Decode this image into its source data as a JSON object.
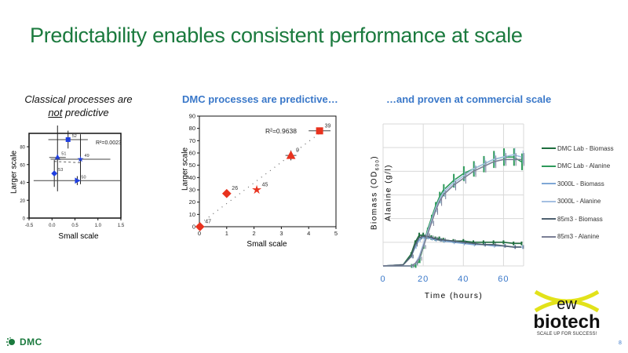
{
  "title": "Predictability enables consistent performance at scale",
  "subtitles": {
    "classical_line1": "Classical processes are",
    "classical_not": "not",
    "classical_rest": " predictive",
    "dmc": "DMC processes are predictive…",
    "commercial": "…and proven at commercial scale"
  },
  "footer": {
    "logo_text": "DMC",
    "page_number": "8",
    "partner_logo": "ewx biotech SCALE UP FOR SUCCESS!"
  },
  "chart_data": [
    {
      "id": "classical",
      "type": "scatter",
      "xlabel": "Small scale",
      "ylabel": "Larger scale",
      "xlim": [
        -0.5,
        1.5
      ],
      "ylim": [
        0,
        95
      ],
      "xticks": [
        -0.5,
        0.0,
        0.5,
        1.0,
        1.5
      ],
      "xtick_labels": [
        "-0.5",
        "0.0",
        "0.5",
        "1.0",
        "1.5"
      ],
      "yticks": [
        0,
        20,
        40,
        60,
        80
      ],
      "annotation": "R²=0.0023",
      "trendline": "dashed",
      "points": [
        {
          "label": "52",
          "x": 0.35,
          "y": 88,
          "marker": "square",
          "xerr": 0.43,
          "yerr": 10
        },
        {
          "label": "51",
          "x": 0.12,
          "y": 68,
          "marker": "triangle",
          "xerr": 0.18,
          "yerr": 38
        },
        {
          "label": "49",
          "x": 0.62,
          "y": 66,
          "marker": "star",
          "xerr": 0.65,
          "yerr": 28
        },
        {
          "label": "53",
          "x": 0.05,
          "y": 50,
          "marker": "diamond",
          "xerr": 0.05,
          "yerr": 15
        },
        {
          "label": "50",
          "x": 0.55,
          "y": 42,
          "marker": "triangle-right",
          "xerr": 0.95,
          "yerr": 5
        }
      ],
      "color": "#1f3fe0"
    },
    {
      "id": "dmc",
      "type": "scatter",
      "xlabel": "Small scale",
      "ylabel": "Larger scale",
      "xlim": [
        0,
        5
      ],
      "ylim": [
        0,
        90
      ],
      "xticks": [
        0,
        1,
        2,
        3,
        4,
        5
      ],
      "xtick_labels": [
        "0",
        "1",
        "2",
        "3",
        "4",
        "5"
      ],
      "yticks": [
        0,
        10,
        20,
        30,
        40,
        50,
        60,
        70,
        80,
        90
      ],
      "annotation": "R²=0.9638",
      "trendline": "dotted",
      "points": [
        {
          "label": "47",
          "x": 0.02,
          "y": 0,
          "marker": "diamond",
          "xerr": 0.05,
          "yerr": 1
        },
        {
          "label": "26",
          "x": 1.0,
          "y": 27,
          "marker": "diamond",
          "xerr": 0.1,
          "yerr": 2
        },
        {
          "label": "45",
          "x": 2.1,
          "y": 30,
          "marker": "star",
          "xerr": 0,
          "yerr": 0
        },
        {
          "label": "9",
          "x": 3.35,
          "y": 58,
          "marker": "triangle",
          "xerr": 0.2,
          "yerr": 4
        },
        {
          "label": "39",
          "x": 4.4,
          "y": 78,
          "marker": "square",
          "xerr": 0.4,
          "yerr": 1
        }
      ],
      "color": "#e8321e"
    },
    {
      "id": "commercial",
      "type": "line",
      "xlabel": "Time (hours)",
      "ylabel_line1": "Biomass (OD",
      "ylabel_sub": "600",
      "ylabel_line1_end": ")",
      "ylabel_line2": "Alanine (g/l)",
      "xlim": [
        0,
        70
      ],
      "ylim": [
        0,
        6
      ],
      "xticks": [
        0,
        20,
        40,
        60
      ],
      "xtick_labels": [
        "0",
        "20",
        "40",
        "60"
      ],
      "grid": true,
      "legend_position": "right",
      "x": [
        0,
        10,
        14,
        16,
        18,
        20,
        22,
        24,
        26,
        28,
        30,
        35,
        40,
        45,
        50,
        55,
        60,
        65,
        69
      ],
      "series": [
        {
          "name": "DMC Lab - Biomass",
          "color": "#1e6e3e",
          "values": [
            0,
            0.05,
            0.5,
            1.0,
            1.3,
            1.3,
            1.25,
            1.2,
            1.15,
            1.15,
            1.1,
            1.05,
            1.05,
            1.0,
            1.0,
            1.0,
            1.0,
            0.95,
            0.95
          ]
        },
        {
          "name": "DMC Lab - Alanine",
          "color": "#2e9a5a",
          "values": [
            0,
            0,
            0,
            0,
            0.2,
            0.8,
            1.5,
            2.0,
            2.5,
            2.9,
            3.2,
            3.6,
            3.9,
            4.1,
            4.3,
            4.5,
            4.6,
            4.6,
            4.4
          ]
        },
        {
          "name": "3000L - Biomass",
          "color": "#7fa7d6",
          "values": [
            0,
            0.05,
            0.4,
            0.8,
            1.1,
            1.2,
            1.2,
            1.15,
            1.1,
            1.1,
            1.05,
            1.0,
            0.95,
            0.9,
            0.9,
            0.85,
            0.85,
            0.8,
            0.8
          ]
        },
        {
          "name": "3000L - Alanine",
          "color": "#a4c0e2",
          "values": [
            0,
            0,
            0,
            0.1,
            0.4,
            0.9,
            1.4,
            1.9,
            2.4,
            2.8,
            3.1,
            3.5,
            3.8,
            4.1,
            4.3,
            4.5,
            4.6,
            4.7,
            4.6
          ]
        },
        {
          "name": "85m3 - Biomass",
          "color": "#4f6070",
          "values": [
            0,
            0.05,
            0.4,
            0.9,
            1.2,
            1.25,
            1.25,
            1.2,
            1.15,
            1.1,
            1.1,
            1.05,
            1.0,
            0.95,
            0.9,
            0.9,
            0.85,
            0.8,
            0.8
          ]
        },
        {
          "name": "85m3 - Alanine",
          "color": "#7a7f95",
          "values": [
            0,
            0,
            0,
            0.1,
            0.3,
            0.8,
            1.3,
            1.8,
            2.3,
            2.7,
            3.0,
            3.4,
            3.7,
            4.0,
            4.2,
            4.4,
            4.5,
            4.5,
            4.5
          ]
        }
      ]
    }
  ]
}
